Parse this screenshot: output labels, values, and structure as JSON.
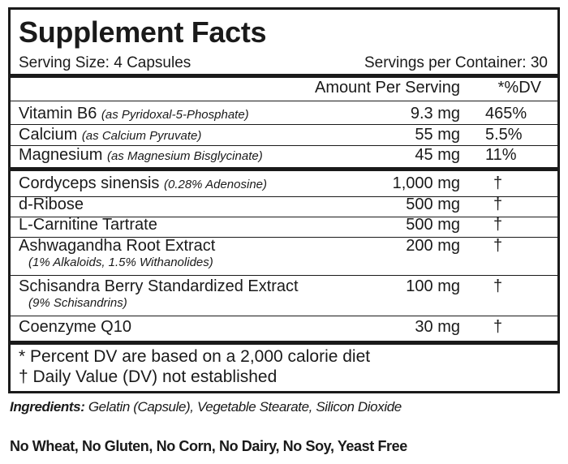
{
  "title": "Supplement Facts",
  "serving_size": "Serving Size: 4 Capsules",
  "servings_per_container": "Servings per Container: 30",
  "header": {
    "amount": "Amount Per Serving",
    "dv": "*%DV"
  },
  "vitamins": [
    {
      "name": "Vitamin B6",
      "form": "(as Pyridoxal-5-Phosphate)",
      "amount": "9.3 mg",
      "dv": "465%"
    },
    {
      "name": "Calcium",
      "form": "(as Calcium Pyruvate)",
      "amount": "55 mg",
      "dv": "5.5%"
    },
    {
      "name": "Magnesium",
      "form": "(as Magnesium Bisglycinate)",
      "amount": "45 mg",
      "dv": "11%"
    }
  ],
  "others": [
    {
      "name": "Cordyceps sinensis",
      "form": "(0.28% Adenosine)",
      "sub": "",
      "amount": "1,000 mg",
      "dv": "†"
    },
    {
      "name": "d-Ribose",
      "form": "",
      "sub": "",
      "amount": "500 mg",
      "dv": "†"
    },
    {
      "name": "L-Carnitine Tartrate",
      "form": "",
      "sub": "",
      "amount": "500 mg",
      "dv": "†"
    },
    {
      "name": "Ashwagandha Root Extract",
      "form": "",
      "sub": "(1% Alkaloids, 1.5% Withanolides)",
      "amount": "200 mg",
      "dv": "†"
    },
    {
      "name": "Schisandra Berry Standardized Extract",
      "form": "",
      "sub": "(9% Schisandrins)",
      "amount": "100 mg",
      "dv": "†"
    },
    {
      "name": "Coenzyme Q10",
      "form": "",
      "sub": "",
      "amount": "30 mg",
      "dv": "†"
    }
  ],
  "footnotes": [
    "* Percent DV are based on a 2,000 calorie diet",
    "† Daily Value (DV) not established"
  ],
  "ingredients_label": "Ingredients:",
  "ingredients_text": " Gelatin (Capsule), Vegetable Stearate, Silicon Dioxide",
  "allergen_statement": "No Wheat, No Gluten, No Corn, No Dairy, No Soy, Yeast Free"
}
